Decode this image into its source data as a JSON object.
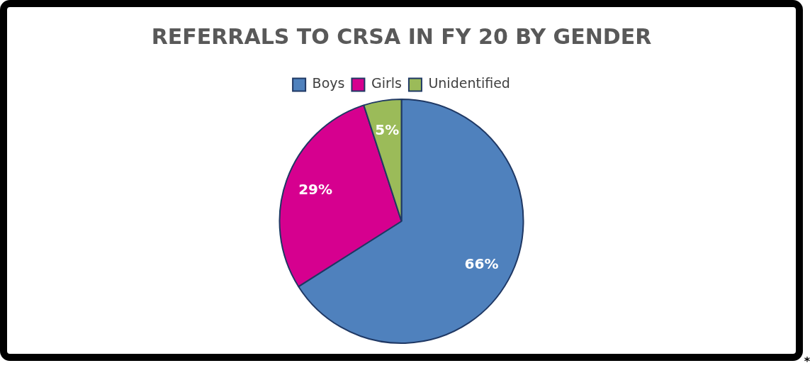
{
  "chart_data": {
    "type": "pie",
    "title": "REFERRALS TO CRSA IN FY 20 BY GENDER",
    "categories": [
      "Boys",
      "Girls",
      "Unidentified"
    ],
    "values": [
      66,
      29,
      5
    ],
    "value_labels": [
      "66%",
      "29%",
      "5%"
    ],
    "colors": [
      "#4f81bd",
      "#d6008f",
      "#9bbb59"
    ],
    "legend": "top",
    "annotations": [
      "*"
    ]
  }
}
